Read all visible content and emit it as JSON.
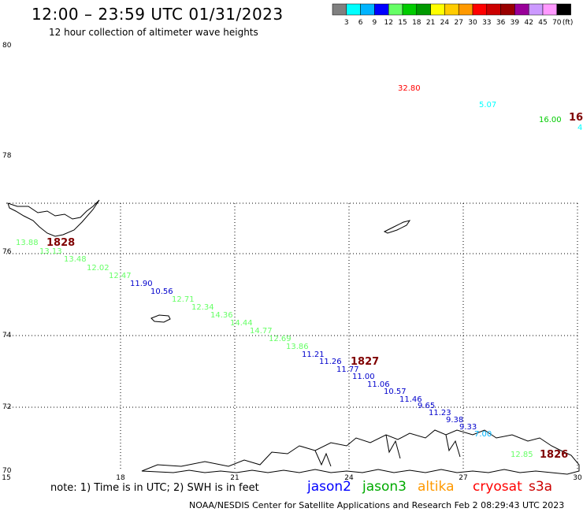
{
  "header": {
    "title": "12:00 – 23:59 UTC 01/31/2023",
    "subtitle": "12 hour collection of altimeter wave heights"
  },
  "legend": {
    "unit": "(ft)",
    "bins": [
      {
        "label": "3",
        "color": "#808080"
      },
      {
        "label": "6",
        "color": "#00ffff"
      },
      {
        "label": "9",
        "color": "#00b4ff"
      },
      {
        "label": "12",
        "color": "#0000ff"
      },
      {
        "label": "15",
        "color": "#66ff66"
      },
      {
        "label": "18",
        "color": "#00cc00"
      },
      {
        "label": "21",
        "color": "#009900"
      },
      {
        "label": "24",
        "color": "#ffff00"
      },
      {
        "label": "27",
        "color": "#ffcc00"
      },
      {
        "label": "30",
        "color": "#ff9900"
      },
      {
        "label": "33",
        "color": "#ff0000"
      },
      {
        "label": "36",
        "color": "#cc0000"
      },
      {
        "label": "39",
        "color": "#990000"
      },
      {
        "label": "42",
        "color": "#990099"
      },
      {
        "label": "45",
        "color": "#cc99ff"
      },
      {
        "label": "70",
        "color": "#ff99ff"
      },
      {
        "label": "",
        "color": "#000000"
      }
    ]
  },
  "map": {
    "lon_labels": [
      "15",
      "18",
      "21",
      "24",
      "27",
      "30"
    ],
    "lat_labels": [
      "70",
      "72",
      "74",
      "76",
      "78",
      "80"
    ],
    "track_1": [
      {
        "v": "13.88",
        "color": "#66ff66"
      },
      {
        "v": "13.13",
        "color": "#66ff66"
      },
      {
        "v": "13.48",
        "color": "#66ff66"
      },
      {
        "v": "12.02",
        "color": "#66ff66"
      },
      {
        "v": "12.47",
        "color": "#66ff66"
      },
      {
        "v": "11.90",
        "color": "#0000cc"
      },
      {
        "v": "10.56",
        "color": "#0000cc"
      },
      {
        "v": "12.71",
        "color": "#66ff66"
      },
      {
        "v": "12.34",
        "color": "#66ff66"
      },
      {
        "v": "14.36",
        "color": "#66ff66"
      },
      {
        "v": "14.44",
        "color": "#66ff66"
      },
      {
        "v": "14.77",
        "color": "#66ff66"
      },
      {
        "v": "12.69",
        "color": "#66ff66"
      },
      {
        "v": "13.86",
        "color": "#66ff66"
      },
      {
        "v": "11.21",
        "color": "#0000cc"
      },
      {
        "v": "11.26",
        "color": "#0000cc"
      },
      {
        "v": "11.77",
        "color": "#0000cc"
      },
      {
        "v": "11.00",
        "color": "#0000cc"
      },
      {
        "v": "11.06",
        "color": "#0000cc"
      },
      {
        "v": "10.57",
        "color": "#0000cc"
      },
      {
        "v": "11.46",
        "color": "#0000cc"
      },
      {
        "v": "9.65",
        "color": "#0000cc"
      },
      {
        "v": "11.23",
        "color": "#0000cc"
      },
      {
        "v": "9.38",
        "color": "#0000cc"
      },
      {
        "v": "9.33",
        "color": "#0000cc"
      },
      {
        "v": "7.00",
        "color": "#00b4ff"
      },
      {
        "v": "12.85",
        "color": "#66ff66"
      }
    ],
    "times": [
      {
        "label": "1828",
        "color": "#800000"
      },
      {
        "label": "1827",
        "color": "#800000"
      },
      {
        "label": "1826",
        "color": "#800000"
      },
      {
        "label": "16",
        "color": "#800000"
      }
    ],
    "extra_values": [
      {
        "v": "32.80",
        "color": "#ff0000"
      },
      {
        "v": "5.07",
        "color": "#00ffff"
      },
      {
        "v": "16.00",
        "color": "#00cc00"
      },
      {
        "v": "4",
        "color": "#00ffff"
      }
    ]
  },
  "footer": {
    "note": "note:  1) Time is in UTC;  2) SWH is in feet",
    "satellites": [
      {
        "name": "jason2",
        "color": "#0000ff"
      },
      {
        "name": "jason3",
        "color": "#00aa00"
      },
      {
        "name": "altika",
        "color": "#ff9900"
      },
      {
        "name": "cryosat",
        "color": "#ff0000"
      },
      {
        "name": "s3a",
        "color": "#cc0000"
      }
    ],
    "credit": "NOAA/NESDIS Center for Satellite Applications and Research     Feb  2 08:29:43 UTC 2023"
  }
}
